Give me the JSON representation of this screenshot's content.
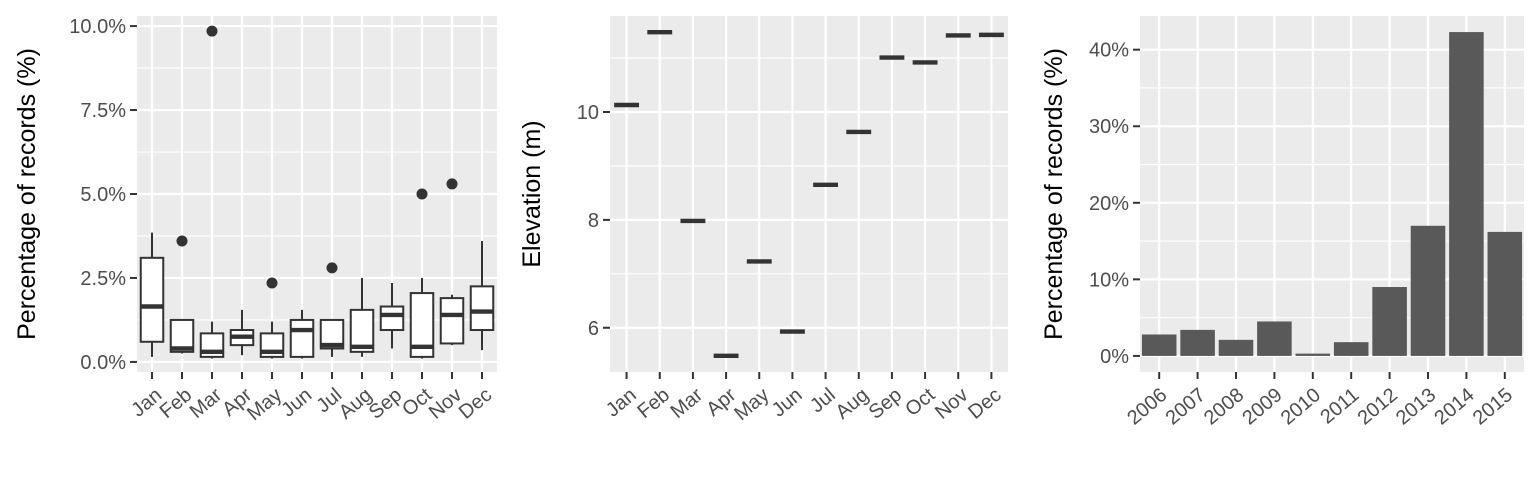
{
  "chart_data": [
    {
      "type": "box",
      "xlabel": "",
      "ylabel": "Percentage of records (%)",
      "categories": [
        "Jan",
        "Feb",
        "Mar",
        "Apr",
        "May",
        "Jun",
        "Jul",
        "Aug",
        "Sep",
        "Oct",
        "Nov",
        "Dec"
      ],
      "ylim": [
        -0.3,
        10.3
      ],
      "y_ticks": [
        0,
        2.5,
        5,
        7.5,
        10
      ],
      "y_tick_labels": [
        "0.0%",
        "2.5%",
        "5.0%",
        "7.5%",
        "10.0%"
      ],
      "grid": true,
      "boxes": [
        {
          "min": 0.15,
          "q1": 0.6,
          "median": 1.65,
          "q3": 3.1,
          "max": 3.85,
          "outliers": []
        },
        {
          "min": 0.25,
          "q1": 0.3,
          "median": 0.4,
          "q3": 1.25,
          "max": 1.25,
          "outliers": [
            3.6
          ]
        },
        {
          "min": 0.1,
          "q1": 0.15,
          "median": 0.3,
          "q3": 0.85,
          "max": 1.2,
          "outliers": [
            9.85
          ]
        },
        {
          "min": 0.2,
          "q1": 0.5,
          "median": 0.75,
          "q3": 0.95,
          "max": 1.55,
          "outliers": []
        },
        {
          "min": 0.1,
          "q1": 0.15,
          "median": 0.3,
          "q3": 0.85,
          "max": 1.2,
          "outliers": [
            2.35
          ]
        },
        {
          "min": 0.1,
          "q1": 0.15,
          "median": 0.95,
          "q3": 1.25,
          "max": 1.55,
          "outliers": []
        },
        {
          "min": 0.15,
          "q1": 0.4,
          "median": 0.5,
          "q3": 1.25,
          "max": 1.25,
          "outliers": [
            2.8
          ]
        },
        {
          "min": 0.15,
          "q1": 0.3,
          "median": 0.45,
          "q3": 1.55,
          "max": 2.5,
          "outliers": []
        },
        {
          "min": 0.4,
          "q1": 0.95,
          "median": 1.4,
          "q3": 1.65,
          "max": 2.35,
          "outliers": []
        },
        {
          "min": 0.1,
          "q1": 0.15,
          "median": 0.45,
          "q3": 2.05,
          "max": 2.5,
          "outliers": [
            5.0
          ]
        },
        {
          "min": 0.5,
          "q1": 0.55,
          "median": 1.4,
          "q3": 1.9,
          "max": 2.0,
          "outliers": [
            5.3
          ]
        },
        {
          "min": 0.35,
          "q1": 0.95,
          "median": 1.5,
          "q3": 2.25,
          "max": 3.6,
          "outliers": []
        }
      ]
    },
    {
      "type": "scatter",
      "xlabel": "",
      "ylabel": "Elevation (m)",
      "categories": [
        "Jan",
        "Feb",
        "Mar",
        "Apr",
        "May",
        "Jun",
        "Jul",
        "Aug",
        "Sep",
        "Oct",
        "Nov",
        "Dec"
      ],
      "values": [
        10.13,
        11.48,
        7.98,
        5.48,
        7.23,
        5.93,
        8.65,
        9.63,
        11.01,
        10.92,
        11.42,
        11.43
      ],
      "ylim": [
        5.18,
        11.78
      ],
      "y_ticks": [
        6,
        8,
        10
      ],
      "y_tick_labels": [
        "6",
        "8",
        "10"
      ],
      "grid": true
    },
    {
      "type": "bar",
      "xlabel": "",
      "ylabel": "Percentage of records (%)",
      "categories": [
        "2006",
        "2007",
        "2008",
        "2009",
        "2010",
        "2011",
        "2012",
        "2013",
        "2014",
        "2015"
      ],
      "values": [
        2.8,
        3.4,
        2.1,
        4.5,
        0.3,
        1.8,
        9.0,
        17.0,
        42.3,
        16.2
      ],
      "ylim": [
        -2.1,
        44.4
      ],
      "y_ticks": [
        0,
        10,
        20,
        30,
        40
      ],
      "y_tick_labels": [
        "0%",
        "10%",
        "20%",
        "30%",
        "40%"
      ],
      "grid": true
    }
  ]
}
